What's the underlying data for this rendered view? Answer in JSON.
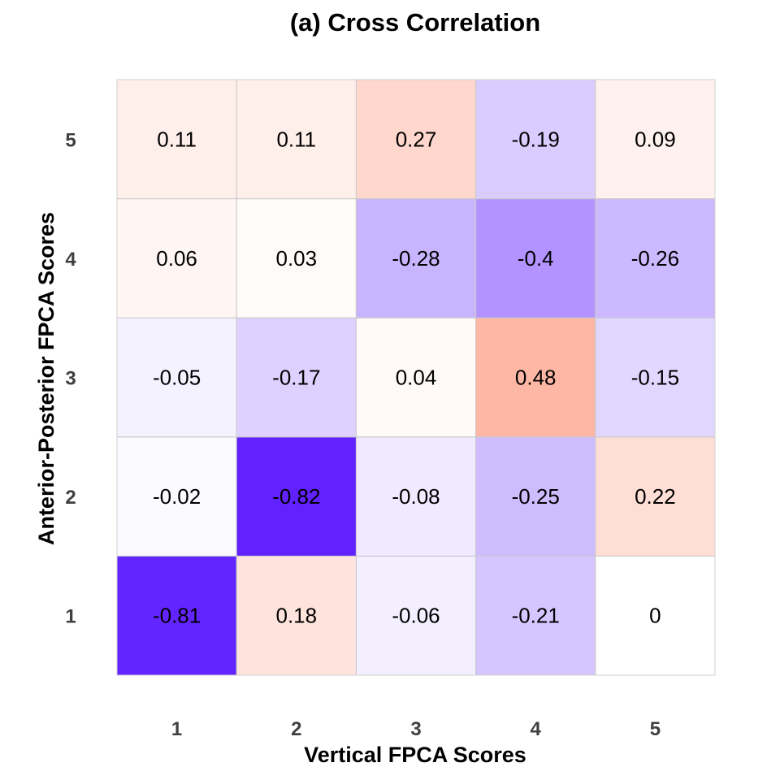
{
  "chart_data": {
    "type": "heatmap",
    "title": "(a) Cross Correlation",
    "xlabel": "Vertical FPCA Scores",
    "ylabel": "Anterior-Posterior FPCA Scores",
    "x_categories": [
      "1",
      "2",
      "3",
      "4",
      "5"
    ],
    "y_categories": [
      "1",
      "2",
      "3",
      "4",
      "5"
    ],
    "values": [
      [
        "-0.81",
        "0.18",
        "-0.06",
        "-0.21",
        "0"
      ],
      [
        "-0.02",
        "-0.82",
        "-0.08",
        "-0.25",
        "0.22"
      ],
      [
        "-0.05",
        "-0.17",
        "0.04",
        "0.48",
        "-0.15"
      ],
      [
        "0.06",
        "0.03",
        "-0.28",
        "-0.4",
        "-0.26"
      ],
      [
        "0.11",
        "0.11",
        "0.27",
        "-0.19",
        "0.09"
      ]
    ],
    "color_scale": {
      "low": "#5b1aff",
      "mid": "#ffffff",
      "high": "#ff8060",
      "range": [
        -0.85,
        0.85
      ]
    },
    "grid": false,
    "legend": "none"
  }
}
